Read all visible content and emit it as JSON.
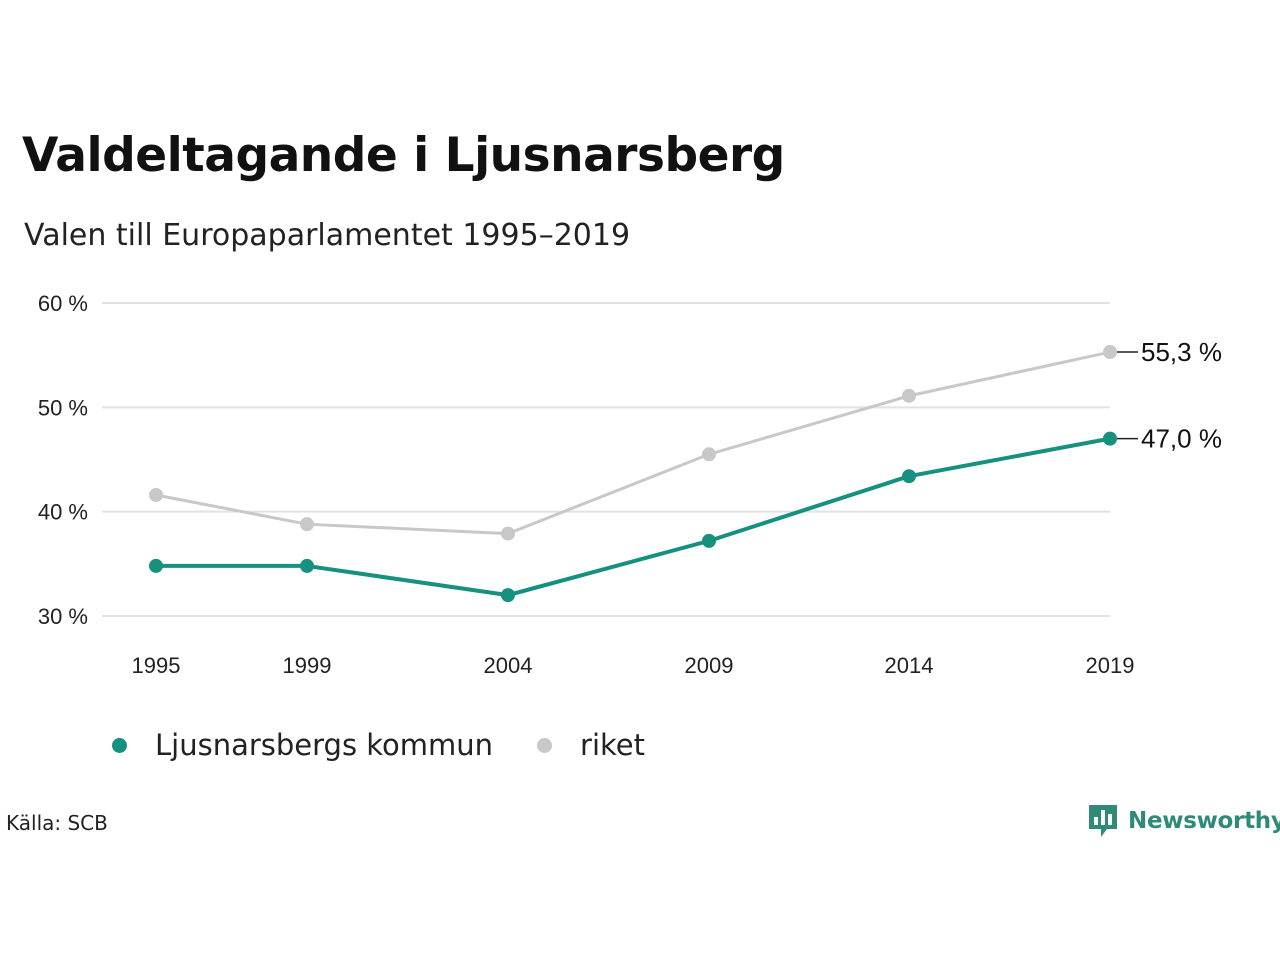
{
  "title": "Valdeltagande i Ljusnarsberg",
  "subtitle": "Valen till Europaparlamentet 1995–2019",
  "source": "Källa: SCB",
  "brand": {
    "name": "Newsworthy",
    "color": "#2e8b7a",
    "icon": "newsworthy-logo-icon"
  },
  "chart_data": {
    "type": "line",
    "x": [
      "1995",
      "1999",
      "2004",
      "2009",
      "2014",
      "2019"
    ],
    "series": [
      {
        "name": "Ljusnarsbergs kommun",
        "color": "#16917f",
        "values": [
          34.8,
          34.8,
          32.0,
          37.2,
          43.4,
          47.0
        ]
      },
      {
        "name": "riket",
        "color": "#c8c8c8",
        "values": [
          41.6,
          38.8,
          37.9,
          45.5,
          51.1,
          55.3
        ]
      }
    ],
    "end_labels": [
      "47,0 %",
      "55,3 %"
    ],
    "y_ticks": [
      "30 %",
      "40 %",
      "50 %",
      "60 %"
    ],
    "ylim": [
      30,
      60
    ],
    "grid": true,
    "legend_position": "bottom-left"
  }
}
